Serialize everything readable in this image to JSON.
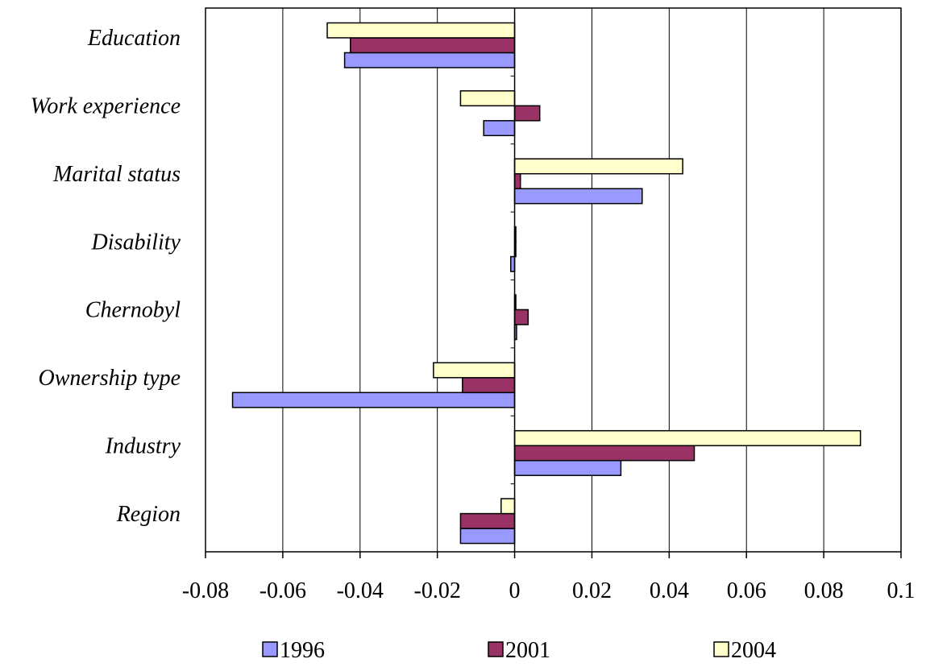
{
  "chart_data": {
    "type": "bar",
    "orientation": "horizontal",
    "categories": [
      "Education",
      "Work experience",
      "Marital status",
      "Disability",
      "Chernobyl",
      "Ownership type",
      "Industry",
      "Region"
    ],
    "series": [
      {
        "name": "1996",
        "color": "#9999ff",
        "values": [
          -0.044,
          -0.008,
          0.033,
          -0.001,
          0.0005,
          -0.073,
          0.0275,
          -0.014
        ]
      },
      {
        "name": "2001",
        "color": "#993366",
        "values": [
          -0.0425,
          0.0065,
          0.0015,
          0.0,
          0.0035,
          -0.0135,
          0.0465,
          -0.014
        ]
      },
      {
        "name": "2004",
        "color": "#ffffcc",
        "values": [
          -0.0485,
          -0.014,
          0.0435,
          0.0,
          0.0,
          -0.021,
          0.0895,
          -0.0035
        ]
      }
    ],
    "xlim": [
      -0.08,
      0.1
    ],
    "xticks": [
      -0.08,
      -0.06,
      -0.04,
      -0.02,
      0,
      0.02,
      0.04,
      0.06,
      0.08,
      0.1
    ],
    "tick_labels": [
      "-0.08",
      "-0.06",
      "-0.04",
      "-0.02",
      "0",
      "0.02",
      "0.04",
      "0.06",
      "0.08",
      "0.1"
    ],
    "grid": "vertical",
    "legend": "bottom",
    "title": "",
    "xlabel": "",
    "ylabel": ""
  }
}
